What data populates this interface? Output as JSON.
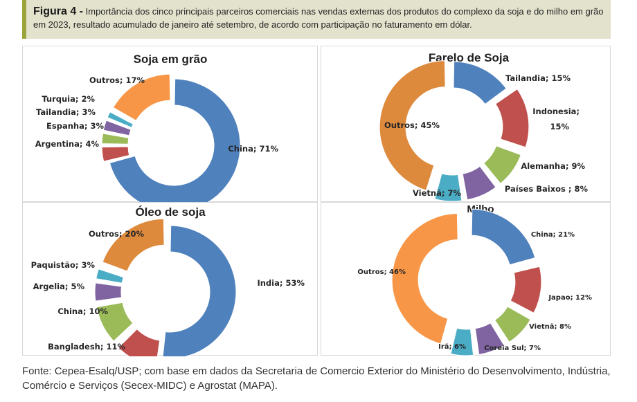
{
  "caption": {
    "lead": "Figura 4 -",
    "text": " Importância dos cinco principais parceiros comerciais nas vendas externas dos produtos do complexo da soja e do milho em grão em 2023, resultado acumulado de janeiro até setembro, de acordo com participação no faturamento em dólar."
  },
  "source": "Fonte: Cepea-Esalq/USP; com base em dados da Secretaria de Comercio Exterior do Ministério do Desenvolvimento, Indústria, Comércio e Serviços (Secex-MIDC) e Agrostat (MAPA).",
  "colors": {
    "blue": "#4f81bd",
    "red": "#c0504d",
    "green": "#9bbb59",
    "purple": "#8064a2",
    "cyan": "#4bacc6",
    "orange": "#f79646",
    "dark_orange": "#de8a3c"
  },
  "chart_data": [
    {
      "type": "pie",
      "title": "Soja em grão",
      "slices": [
        {
          "label": "China; 71%",
          "value": 71,
          "color": "#4f81bd"
        },
        {
          "label": "Argentina; 4%",
          "value": 4,
          "color": "#c0504d"
        },
        {
          "label": "Espanha; 3%",
          "value": 3,
          "color": "#9bbb59"
        },
        {
          "label": "Tailandia; 3%",
          "value": 3,
          "color": "#8064a2"
        },
        {
          "label": "Turquia; 2%",
          "value": 2,
          "color": "#4bacc6"
        },
        {
          "label": "Outros; 17%",
          "value": 17,
          "color": "#f79646"
        }
      ]
    },
    {
      "type": "pie",
      "title": "Farelo de Soja",
      "slices": [
        {
          "label": "Tailandia; 15%",
          "value": 15,
          "color": "#4f81bd"
        },
        {
          "label": "Indonesia; 15%",
          "value": 15,
          "color": "#c0504d"
        },
        {
          "label": "Alemanha; 9%",
          "value": 9,
          "color": "#9bbb59"
        },
        {
          "label": "Países Baixos ; 8%",
          "value": 8,
          "color": "#8064a2"
        },
        {
          "label": "Vietnã; 7%",
          "value": 7,
          "color": "#4bacc6"
        },
        {
          "label": "Outros; 45%",
          "value": 45,
          "color": "#de8a3c"
        }
      ]
    },
    {
      "type": "pie",
      "title": "Óleo de soja",
      "slices": [
        {
          "label": "India; 53%",
          "value": 53,
          "color": "#4f81bd"
        },
        {
          "label": "Bangladesh; 11%",
          "value": 11,
          "color": "#c0504d"
        },
        {
          "label": "China; 10%",
          "value": 10,
          "color": "#9bbb59"
        },
        {
          "label": "Argelia; 5%",
          "value": 5,
          "color": "#8064a2"
        },
        {
          "label": "Paquistão; 3%",
          "value": 3,
          "color": "#4bacc6"
        },
        {
          "label": "Outros; 20%",
          "value": 20,
          "color": "#de8a3c"
        }
      ]
    },
    {
      "type": "pie",
      "title": "Milho",
      "slices": [
        {
          "label": "China; 21%",
          "value": 21,
          "color": "#4f81bd"
        },
        {
          "label": "Japao; 12%",
          "value": 12,
          "color": "#c0504d"
        },
        {
          "label": "Vietnã; 8%",
          "value": 8,
          "color": "#9bbb59"
        },
        {
          "label": "Coreia Sul; 7%",
          "value": 7,
          "color": "#8064a2"
        },
        {
          "label": "Irã; 6%",
          "value": 6,
          "color": "#4bacc6"
        },
        {
          "label": "Outros; 46%",
          "value": 46,
          "color": "#f79646"
        }
      ]
    }
  ]
}
